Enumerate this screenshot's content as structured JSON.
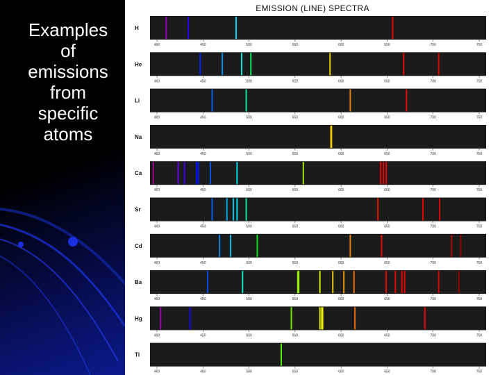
{
  "slide_title": "Examples\nof\nemissions\nfrom\nspecific\natoms",
  "figure_title": "EMISSION (LINE) SPECTRA",
  "axis_ticks": [
    400,
    450,
    500,
    550,
    600,
    650,
    700,
    750
  ],
  "wavelength_range": [
    400,
    750
  ],
  "spectra": [
    {
      "element": "H",
      "lines": [
        410,
        434,
        486,
        656
      ]
    },
    {
      "element": "He",
      "lines": [
        447,
        471,
        492,
        502,
        588,
        668,
        706
      ]
    },
    {
      "element": "Li",
      "lines": [
        460,
        497,
        610,
        671
      ]
    },
    {
      "element": "Na",
      "lines": [
        589,
        589.6
      ]
    },
    {
      "element": "Ca",
      "lines": [
        396,
        423,
        430,
        443,
        445,
        458,
        487,
        559,
        643,
        646,
        649
      ]
    },
    {
      "element": "Sr",
      "lines": [
        460,
        476,
        483,
        487,
        497,
        640,
        689,
        707
      ]
    },
    {
      "element": "Cd",
      "lines": [
        468,
        480,
        509,
        610,
        644,
        720,
        730
      ]
    },
    {
      "element": "Ba",
      "lines": [
        455,
        493,
        553,
        554,
        577,
        591,
        603,
        614,
        649,
        659,
        666,
        669,
        706,
        728
      ]
    },
    {
      "element": "Hg",
      "lines": [
        404,
        436,
        546,
        577,
        579,
        580,
        615,
        691
      ]
    },
    {
      "element": "Tl",
      "lines": [
        535
      ]
    }
  ]
}
